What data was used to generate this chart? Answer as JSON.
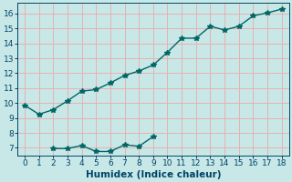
{
  "title": "",
  "xlabel": "Humidex (Indice chaleur)",
  "ylabel": "",
  "background_color": "#c8e8e8",
  "grid_color": "#e8b0b0",
  "line_color": "#006666",
  "xlim": [
    -0.5,
    18.5
  ],
  "ylim": [
    6.5,
    16.7
  ],
  "xticks": [
    0,
    1,
    2,
    3,
    4,
    5,
    6,
    7,
    8,
    9,
    10,
    11,
    12,
    13,
    14,
    15,
    16,
    17,
    18
  ],
  "yticks": [
    7,
    8,
    9,
    10,
    11,
    12,
    13,
    14,
    15,
    16
  ],
  "line1_x": [
    0,
    1,
    2,
    3,
    4,
    5,
    6,
    7,
    8,
    9,
    10,
    11,
    12,
    13,
    14,
    15,
    16,
    17,
    18
  ],
  "line1_y": [
    9.85,
    9.25,
    9.55,
    10.15,
    10.8,
    10.9,
    11.35,
    11.85,
    12.15,
    12.55,
    13.4,
    14.35,
    14.35,
    15.15,
    14.9,
    15.15,
    15.85,
    16.05,
    16.3
  ],
  "line2_x": [
    2,
    3,
    4,
    5,
    6,
    7,
    8,
    9
  ],
  "line2_y": [
    6.95,
    6.95,
    7.15,
    6.75,
    6.75,
    7.2,
    7.1,
    7.75
  ],
  "marker": "*",
  "marker_size": 4,
  "line_width": 1.0,
  "tick_fontsize": 6.5,
  "xlabel_fontsize": 7.5,
  "tick_color": "#004466",
  "spine_color": "#004466"
}
